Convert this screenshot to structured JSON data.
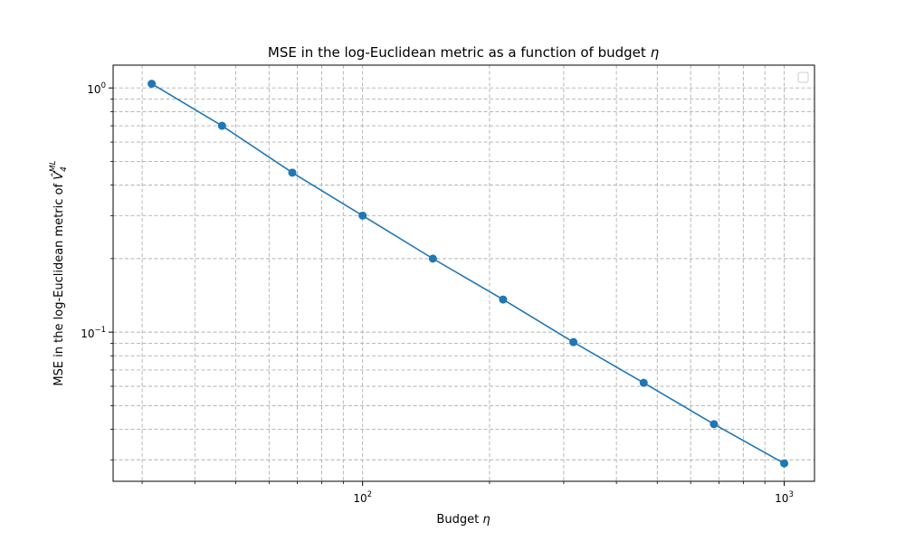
{
  "chart_data": {
    "type": "line",
    "title": "MSE in the log-Euclidean metric as a function of budget",
    "title_symbol": "η",
    "xlabel": "Budget",
    "xlabel_symbol": "η",
    "ylabel": "MSE in the log-Euclidean metric of",
    "ylabel_symbol": "V̂",
    "ylabel_symbol_sub": "4",
    "ylabel_symbol_sup": "ML",
    "xscale": "log",
    "yscale": "log",
    "xlim": [
      25.6,
      1180
    ],
    "ylim": [
      0.0245,
      1.24
    ],
    "grid": true,
    "grid_style": "dashed",
    "legend": "top-right",
    "color": "#1f77b4",
    "x_ticks": [
      {
        "value": 100,
        "base": "10",
        "exp": "2"
      },
      {
        "value": 1000,
        "base": "10",
        "exp": "3"
      }
    ],
    "y_ticks": [
      {
        "value": 0.1,
        "base": "10",
        "exp": "−1"
      },
      {
        "value": 1,
        "base": "10",
        "exp": "0"
      }
    ],
    "series": [
      {
        "x": [
          31.6,
          46.4,
          68.1,
          100,
          146.8,
          215.4,
          316.2,
          464.2,
          681.3,
          1000
        ],
        "y": [
          1.04,
          0.7,
          0.45,
          0.3,
          0.2,
          0.136,
          0.091,
          0.062,
          0.042,
          0.029
        ]
      }
    ]
  }
}
